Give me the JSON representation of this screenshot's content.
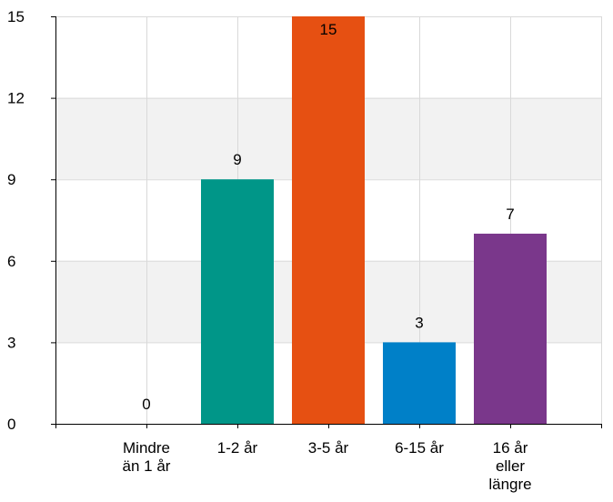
{
  "chart_data": {
    "type": "bar",
    "categories": [
      [
        "Mindre",
        "än 1 år"
      ],
      [
        "1-2 år"
      ],
      [
        "3-5 år"
      ],
      [
        "6-15 år"
      ],
      [
        "16 år",
        "eller",
        "längre"
      ]
    ],
    "values": [
      0,
      9,
      15,
      3,
      7
    ],
    "value_labels": [
      "0",
      "9",
      "15",
      "3",
      "7"
    ],
    "colors": [
      "#009688",
      "#009688",
      "#e65012",
      "#0080c8",
      "#7a378b"
    ],
    "yticks": [
      0,
      3,
      6,
      9,
      12,
      15
    ],
    "ylim": [
      0,
      15
    ],
    "grid": true,
    "band_color": "#f2f2f2",
    "legend": "none"
  }
}
